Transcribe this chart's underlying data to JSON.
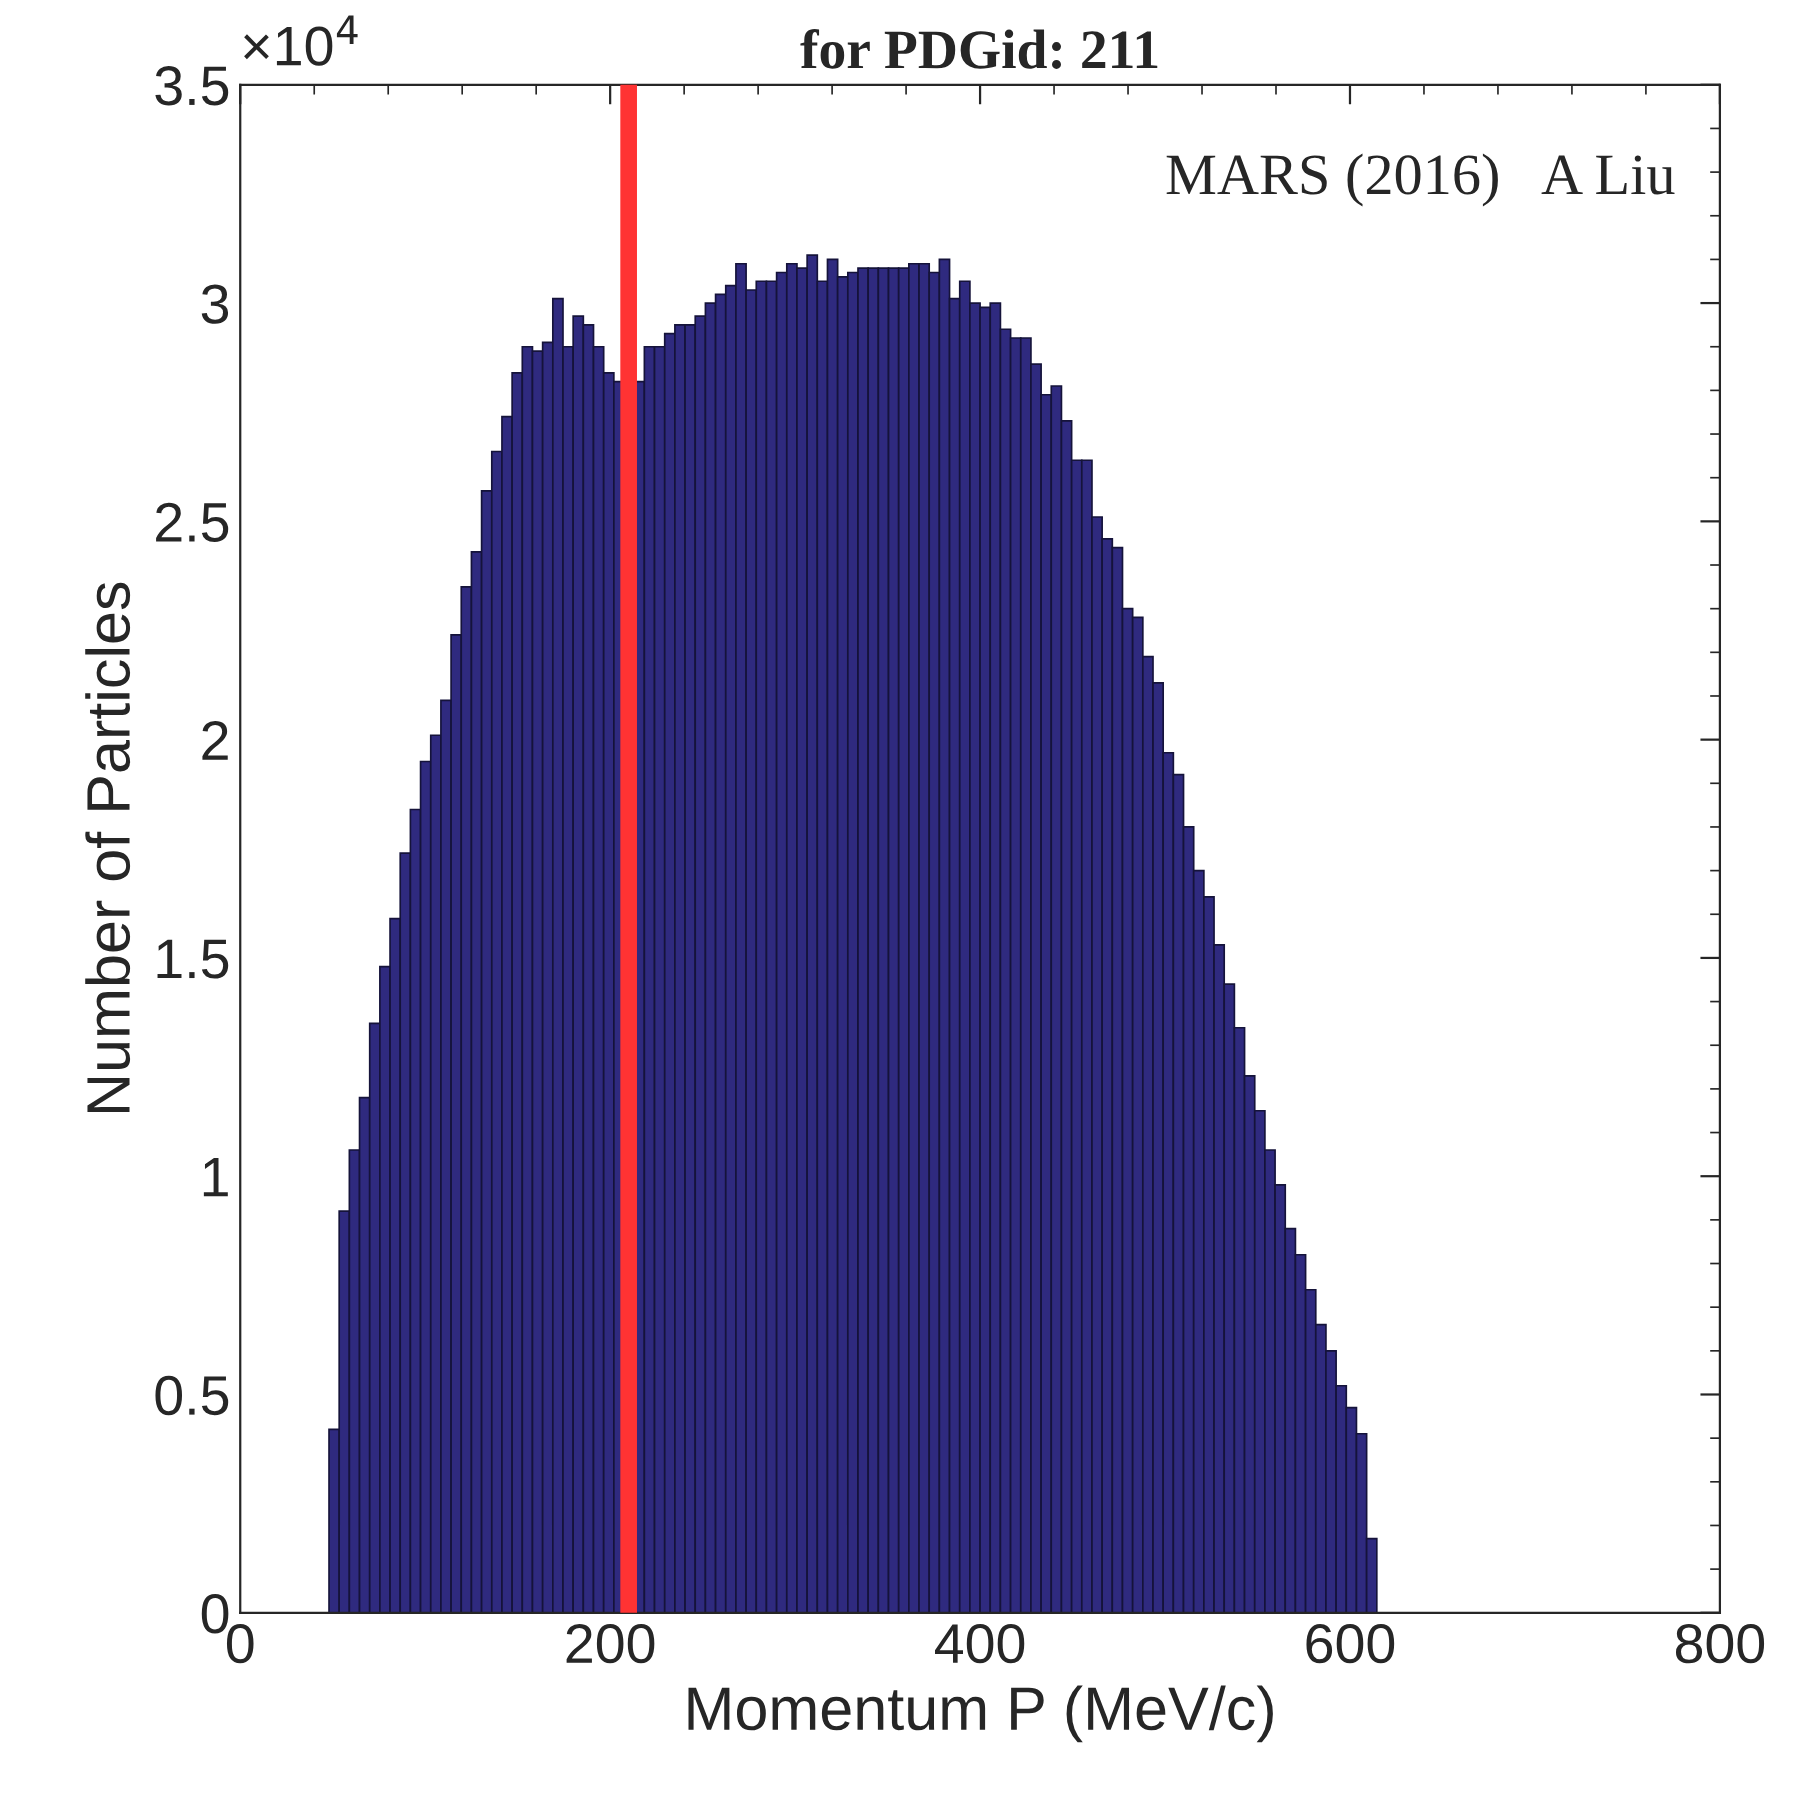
{
  "chart_data": {
    "type": "histogram",
    "title": "for PDGid: 211",
    "xlabel": "Momentum P (MeV/c)",
    "ylabel": "Number of Particles",
    "annotations": [
      "MARS (2016)   A Liu",
      "×10$^{4}$"
    ],
    "color": "#2f2a7f",
    "bins": [
      48,
      53.5,
      59,
      64.5,
      70,
      75.5,
      81,
      86.5,
      92,
      97.5,
      103,
      108.5,
      114,
      119.5,
      125,
      130.5,
      136,
      141.5,
      147,
      152.5,
      158,
      163.5,
      169,
      174.5,
      180,
      185.5,
      191,
      196.5,
      202,
      207.5,
      213,
      218.5,
      224,
      229.5,
      235,
      240.5,
      246,
      251.5,
      257,
      262.5,
      268,
      273.5,
      279,
      284.5,
      290,
      295.5,
      301,
      306.5,
      312,
      317.5,
      323,
      328.5,
      334,
      339.5,
      345,
      350.5,
      356,
      361.5,
      367,
      372.5,
      378,
      383.5,
      389,
      394.5,
      400,
      405.5,
      411,
      416.5,
      422,
      427.5,
      433,
      438.5,
      444,
      449.5,
      455,
      460.5,
      466,
      471.5,
      477,
      482.5,
      488,
      493.5,
      499,
      504.5,
      510,
      515.5,
      521,
      526.5,
      532,
      537.5,
      543,
      548.5,
      554,
      559.5,
      565,
      570.5,
      576,
      581.5,
      587,
      592.5,
      598,
      603.5,
      609,
      614.5
    ],
    "values": [
      0.42,
      0.92,
      1.06,
      1.18,
      1.35,
      1.48,
      1.59,
      1.74,
      1.84,
      1.95,
      2.01,
      2.09,
      2.24,
      2.35,
      2.43,
      2.57,
      2.66,
      2.74,
      2.84,
      2.9,
      2.89,
      2.91,
      3.01,
      2.9,
      2.97,
      2.95,
      2.9,
      2.84,
      2.82,
      null,
      2.82,
      2.9,
      2.9,
      2.93,
      2.95,
      2.95,
      2.97,
      3.0,
      3.02,
      3.04,
      3.09,
      3.03,
      3.05,
      3.05,
      3.07,
      3.09,
      3.08,
      3.11,
      3.05,
      3.1,
      3.06,
      3.07,
      3.08,
      3.08,
      3.08,
      3.08,
      3.08,
      3.09,
      3.09,
      3.07,
      3.1,
      3.01,
      3.05,
      3.0,
      2.99,
      3.0,
      2.94,
      2.92,
      2.92,
      2.86,
      2.79,
      2.81,
      2.73,
      2.64,
      2.64,
      2.51,
      2.46,
      2.44,
      2.3,
      2.28,
      2.19,
      2.13,
      1.97,
      1.92,
      1.8,
      1.7,
      1.64,
      1.53,
      1.44,
      1.34,
      1.23,
      1.15,
      1.06,
      0.98,
      0.88,
      0.82,
      0.74,
      0.66,
      0.6,
      0.52,
      0.47,
      0.41,
      0.17
    ],
    "xlim": [
      0,
      800
    ],
    "xticks": [
      0,
      200,
      400,
      600,
      800
    ],
    "ylim": [
      0,
      3.5
    ],
    "yticks": [
      0,
      0.5,
      1,
      1.5,
      2,
      2.5,
      3,
      3.5
    ],
    "ref_lines": [
      {
        "axis": "x",
        "value": 210,
        "color": "#ff3333"
      }
    ],
    "grid": false,
    "legend": false
  }
}
